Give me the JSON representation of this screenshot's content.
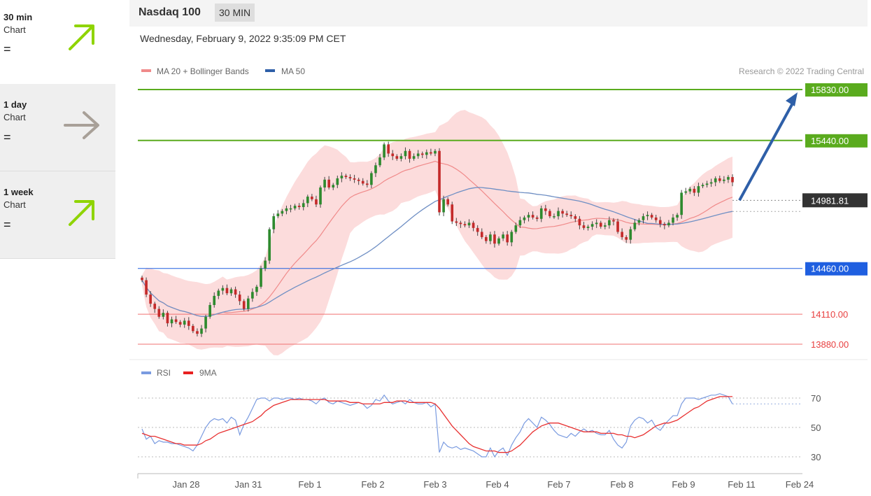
{
  "sidebar": {
    "items": [
      {
        "name": "30 min",
        "sub": "Chart",
        "eq": "=",
        "arrow": "up",
        "color": "#8fd400"
      },
      {
        "name": "1 day",
        "sub": "Chart",
        "eq": "=",
        "arrow": "right",
        "color": "#a8a098"
      },
      {
        "name": "1 week",
        "sub": "Chart",
        "eq": "=",
        "arrow": "up",
        "color": "#8fd400"
      }
    ]
  },
  "header": {
    "title": "Nasdaq 100",
    "badge": "30 MIN"
  },
  "date": "Wednesday, February 9, 2022 9:35:09 PM CET",
  "legend": {
    "ma20": "MA 20 + Bollinger Bands",
    "ma50": "MA 50",
    "credit": "Research © 2022 Trading Central"
  },
  "rsi_legend": {
    "rsi": "RSI",
    "ma": "9MA"
  },
  "chart_data": {
    "type": "candlestick",
    "price_range": [
      13800,
      15900
    ],
    "last_price": 14981.81,
    "last_price_label": "14981.81",
    "levels": [
      {
        "value": 15830,
        "label": "15830.00",
        "kind": "resistance",
        "color": "#5aab1e"
      },
      {
        "value": 15440,
        "label": "15440.00",
        "kind": "resistance",
        "color": "#5aab1e"
      },
      {
        "value": 14460,
        "label": "14460.00",
        "kind": "pivot",
        "color": "#1f5fe0"
      },
      {
        "value": 14110,
        "label": "14110.00",
        "kind": "support",
        "color": "#f07070"
      },
      {
        "value": 13880,
        "label": "13880.00",
        "kind": "support",
        "color": "#f07070"
      }
    ],
    "target_arrow": {
      "from": 14981.81,
      "to": 15830
    },
    "x_ticks": [
      "Jan 28",
      "Jan 31",
      "Feb 1",
      "Feb 2",
      "Feb 3",
      "Feb 4",
      "Feb 7",
      "Feb 8",
      "Feb 9",
      "Feb 11",
      "Feb 24"
    ],
    "close": [
      14370,
      14260,
      14190,
      14150,
      14090,
      14120,
      14040,
      14070,
      14050,
      14030,
      14060,
      14020,
      13980,
      13960,
      14000,
      14090,
      14180,
      14250,
      14290,
      14310,
      14270,
      14300,
      14260,
      14210,
      14150,
      14230,
      14280,
      14320,
      14460,
      14520,
      14760,
      14860,
      14880,
      14900,
      14920,
      14920,
      14940,
      14930,
      14960,
      15010,
      14990,
      14950,
      15080,
      15140,
      15080,
      15100,
      15150,
      15170,
      15160,
      15150,
      15140,
      15130,
      15110,
      15100,
      15190,
      15250,
      15310,
      15410,
      15340,
      15320,
      15300,
      15320,
      15360,
      15300,
      15320,
      15340,
      15330,
      15350,
      15340,
      15360,
      14890,
      14990,
      14950,
      14820,
      14810,
      14800,
      14790,
      14810,
      14770,
      14740,
      14700,
      14670,
      14720,
      14650,
      14690,
      14720,
      14660,
      14740,
      14790,
      14830,
      14850,
      14870,
      14850,
      14840,
      14920,
      14900,
      14860,
      14860,
      14900,
      14880,
      14870,
      14860,
      14840,
      14790,
      14770,
      14780,
      14800,
      14810,
      14780,
      14790,
      14830,
      14820,
      14740,
      14700,
      14680,
      14760,
      14810,
      14830,
      14860,
      14870,
      14850,
      14830,
      14800,
      14790,
      14810,
      14850,
      14870,
      15040,
      15050,
      15070,
      15040,
      15090,
      15100,
      15110,
      15120,
      15150,
      15130,
      15140,
      15160,
      15120
    ],
    "rsi_range": [
      20,
      80
    ],
    "rsi_ticks": [
      70,
      50,
      30
    ],
    "rsi": [
      49,
      42,
      44,
      39,
      41,
      40,
      40,
      39,
      39,
      38,
      37,
      36,
      34,
      38,
      44,
      50,
      54,
      56,
      55,
      56,
      53,
      57,
      55,
      45,
      52,
      57,
      63,
      69,
      70,
      70,
      68,
      70,
      70,
      69,
      70,
      70,
      69,
      70,
      69,
      69,
      68,
      66,
      69,
      70,
      67,
      66,
      68,
      67,
      66,
      65,
      66,
      67,
      66,
      63,
      65,
      69,
      68,
      72,
      68,
      66,
      67,
      68,
      66,
      69,
      67,
      66,
      66,
      67,
      64,
      66,
      33,
      40,
      37,
      36,
      37,
      35,
      36,
      35,
      34,
      32,
      30,
      30,
      36,
      30,
      34,
      36,
      31,
      38,
      43,
      47,
      53,
      56,
      53,
      50,
      57,
      55,
      52,
      48,
      45,
      44,
      43,
      46,
      44,
      47,
      49,
      47,
      48,
      46,
      45,
      45,
      48,
      42,
      38,
      36,
      40,
      51,
      55,
      57,
      56,
      53,
      55,
      50,
      48,
      52,
      55,
      58,
      58,
      66,
      70,
      70,
      70,
      69,
      70,
      71,
      72,
      72,
      73,
      72,
      71,
      66
    ],
    "rsi_ma": [
      46,
      45,
      44,
      44,
      43,
      42,
      41,
      40,
      39,
      39,
      38,
      38,
      38,
      38,
      39,
      41,
      42,
      44,
      46,
      47,
      48,
      49,
      50,
      51,
      52,
      53,
      54,
      56,
      58,
      61,
      63,
      65,
      66,
      67,
      68,
      69,
      69,
      69,
      69,
      69,
      69,
      69,
      69,
      69,
      68,
      68,
      68,
      68,
      68,
      67,
      67,
      67,
      66,
      66,
      66,
      66,
      66,
      67,
      67,
      67,
      68,
      68,
      68,
      67,
      67,
      67,
      67,
      67,
      67,
      66,
      63,
      59,
      55,
      51,
      48,
      45,
      42,
      39,
      37,
      36,
      35,
      34,
      34,
      34,
      33,
      33,
      33,
      34,
      36,
      38,
      41,
      44,
      47,
      49,
      51,
      52,
      53,
      53,
      53,
      52,
      51,
      50,
      49,
      48,
      47,
      47,
      47,
      47,
      46,
      46,
      46,
      46,
      45,
      45,
      44,
      44,
      43,
      44,
      45,
      47,
      49,
      51,
      52,
      53,
      53,
      54,
      55,
      57,
      59,
      61,
      63,
      64,
      66,
      68,
      69,
      70,
      71,
      71,
      71,
      71
    ]
  }
}
